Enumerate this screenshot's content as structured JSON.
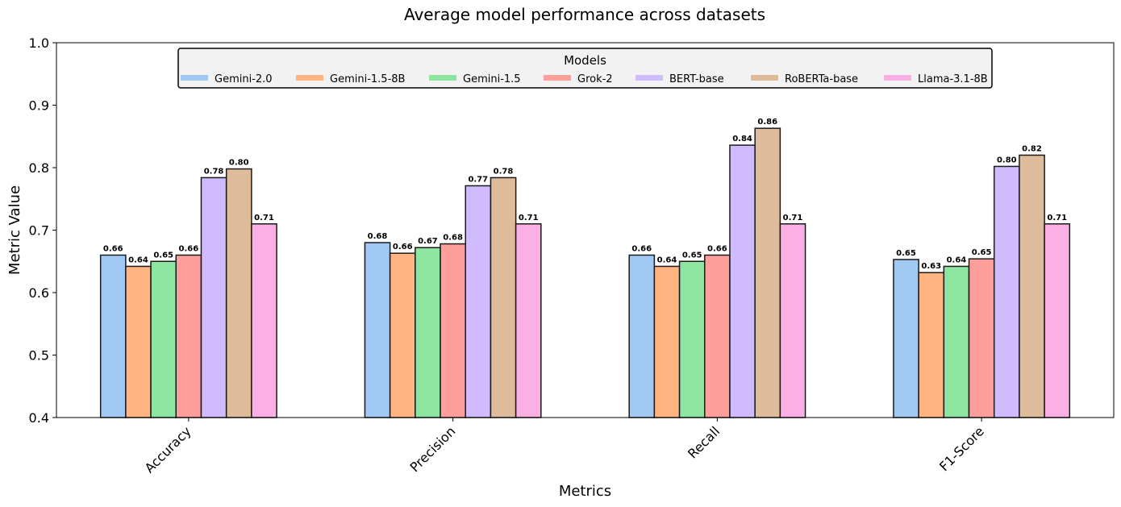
{
  "chart_data": {
    "type": "bar",
    "title": "Average model performance across datasets",
    "xlabel": "Metrics",
    "ylabel": "Metric Value",
    "ylim": [
      0.4,
      1.0
    ],
    "yticks": [
      "0.4",
      "0.5",
      "0.6",
      "0.7",
      "0.8",
      "0.9",
      "1.0"
    ],
    "categories": [
      "Accuracy",
      "Precision",
      "Recall",
      "F1-Score"
    ],
    "legend": {
      "title": "Models",
      "placement": "top-center"
    },
    "grid": false,
    "series": [
      {
        "name": "Gemini-2.0",
        "color": "#a1c9f4",
        "values": [
          0.66,
          0.68,
          0.66,
          0.653
        ],
        "labels": [
          "0.66",
          "0.68",
          "0.66",
          "0.65"
        ]
      },
      {
        "name": "Gemini-1.5-8B",
        "color": "#ffb482",
        "values": [
          0.642,
          0.663,
          0.642,
          0.632
        ],
        "labels": [
          "0.64",
          "0.66",
          "0.64",
          "0.63"
        ]
      },
      {
        "name": "Gemini-1.5",
        "color": "#8de5a1",
        "values": [
          0.65,
          0.672,
          0.65,
          0.642
        ],
        "labels": [
          "0.65",
          "0.67",
          "0.65",
          "0.64"
        ]
      },
      {
        "name": "Grok-2",
        "color": "#ff9f9b",
        "values": [
          0.66,
          0.678,
          0.66,
          0.654
        ],
        "labels": [
          "0.66",
          "0.68",
          "0.66",
          "0.65"
        ]
      },
      {
        "name": "BERT-base",
        "color": "#d0bbff",
        "values": [
          0.784,
          0.771,
          0.836,
          0.802
        ],
        "labels": [
          "0.78",
          "0.77",
          "0.84",
          "0.80"
        ]
      },
      {
        "name": "RoBERTa-base",
        "color": "#debb9b",
        "values": [
          0.798,
          0.784,
          0.863,
          0.82
        ],
        "labels": [
          "0.80",
          "0.78",
          "0.86",
          "0.82"
        ]
      },
      {
        "name": "Llama-3.1-8B",
        "color": "#fab0e4",
        "values": [
          0.71,
          0.71,
          0.71,
          0.71
        ],
        "labels": [
          "0.71",
          "0.71",
          "0.71",
          "0.71"
        ]
      }
    ]
  }
}
